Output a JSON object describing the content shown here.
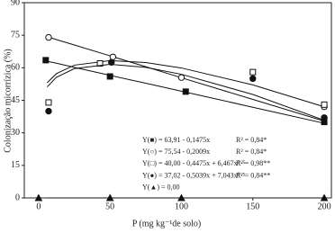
{
  "chart_data": {
    "type": "scatter",
    "x_label": "P (mg kg⁻¹de solo)",
    "y_label": "Colonização micorrízica (%)",
    "xlim": [
      -10,
      205
    ],
    "ylim": [
      0,
      90
    ],
    "xticks": [
      0,
      50,
      100,
      150,
      200
    ],
    "yticks": [
      0,
      15,
      30,
      45,
      60,
      75,
      90
    ],
    "fit_x": [
      6,
      12.5,
      25,
      50,
      75,
      100,
      150,
      200
    ],
    "series": [
      {
        "name": "Y(■) = 63,91 - 0,1475x",
        "r2": "R² = 0,84*",
        "marker": "square",
        "filled": true,
        "color": "#111",
        "x": [
          5,
          50,
          103,
          200
        ],
        "values": [
          63.5,
          56,
          49,
          35
        ],
        "fit": [
          63,
          62.1,
          60.2,
          56.5,
          52.9,
          49.2,
          41.8,
          34.4
        ]
      },
      {
        "name": "Y(○) = 75,54 - 0,2009x",
        "r2": "R² = 0,84*",
        "marker": "circle",
        "filled": false,
        "color": "#111",
        "x": [
          7,
          52,
          100,
          200
        ],
        "values": [
          74,
          65,
          55.5,
          42
        ],
        "fit": [
          74.3,
          73,
          70.5,
          65.5,
          60.5,
          55.4,
          45.4,
          35.4
        ]
      },
      {
        "name": "Y(□) = 40,00 - 0,4475x + 6,467x⁰·⁵",
        "r2": "R² = 0,98**",
        "marker": "square",
        "filled": false,
        "color": "#111",
        "x": [
          7,
          43,
          150,
          200
        ],
        "values": [
          44,
          62,
          58,
          43
        ],
        "fit": [
          53.1,
          57.3,
          61.2,
          63.3,
          62.4,
          59.9,
          52.1,
          42
        ]
      },
      {
        "name": "Y(●) = 37,02 - 0,5039x + 7,043x⁰·⁵",
        "r2": "R² = 0,84**",
        "marker": "circle",
        "filled": true,
        "color": "#111",
        "x": [
          7,
          51,
          150,
          200
        ],
        "values": [
          40,
          62.5,
          55,
          37
        ],
        "fit": [
          51.2,
          55.6,
          59.6,
          61.6,
          60.2,
          57,
          47.7,
          35.8
        ]
      },
      {
        "name": "Y(▲) = 0,00",
        "marker": "triangle",
        "filled": true,
        "color": "#111",
        "x": [
          0,
          50,
          100,
          200
        ],
        "values": [
          0,
          0,
          0,
          0
        ],
        "fit": [
          0,
          0,
          0,
          0,
          0,
          0,
          0,
          0
        ]
      }
    ]
  }
}
